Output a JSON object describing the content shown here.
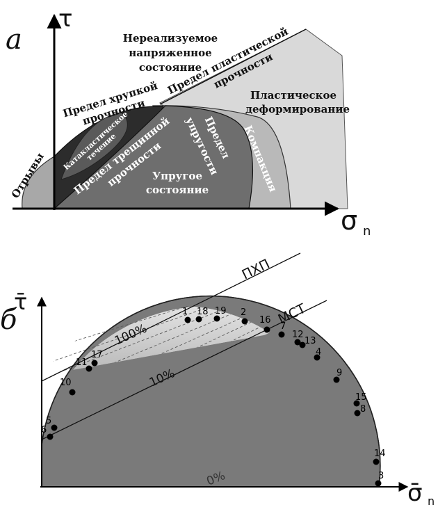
{
  "panel_a": {
    "letter": "a",
    "axis_y": "τ",
    "axis_x": "σ",
    "axis_x_sub": "n",
    "regions": {
      "unreal_1": "Нереализуемое",
      "unreal_2": "напряженное",
      "unreal_3": "состояние",
      "brittle_1": "Предел хрупкой",
      "brittle_2": "прочности",
      "plastic_limit_1": "Предел пластической",
      "plastic_limit_2": "прочности",
      "plastic_def_1": "Пластическое",
      "plastic_def_2": "деформирование",
      "cataclastic_1": "Катакластическое",
      "cataclastic_2": "течение",
      "crack_1": "Предел трещинной",
      "crack_2": "прочности",
      "elastic_limit_1": "Предел",
      "elastic_limit_2": "упругости",
      "compaction": "Компакция",
      "elastic_state_1": "Упругое",
      "elastic_state_2": "состояние",
      "tension": "Отрывы"
    }
  },
  "panel_b": {
    "letter": "б",
    "axis_y": "τ̄",
    "axis_x": "σ̄",
    "axis_x_sub": "n",
    "lines": {
      "pxp": "ПХП",
      "mst": "МСТ"
    },
    "percents": {
      "p100": "100%",
      "p10": "10%",
      "p0": "0%"
    },
    "points": [
      "1",
      "18",
      "19",
      "2",
      "16",
      "7",
      "12",
      "13",
      "4",
      "9",
      "15",
      "8",
      "14",
      "3",
      "11",
      "17",
      "10",
      "5",
      "6"
    ]
  }
}
